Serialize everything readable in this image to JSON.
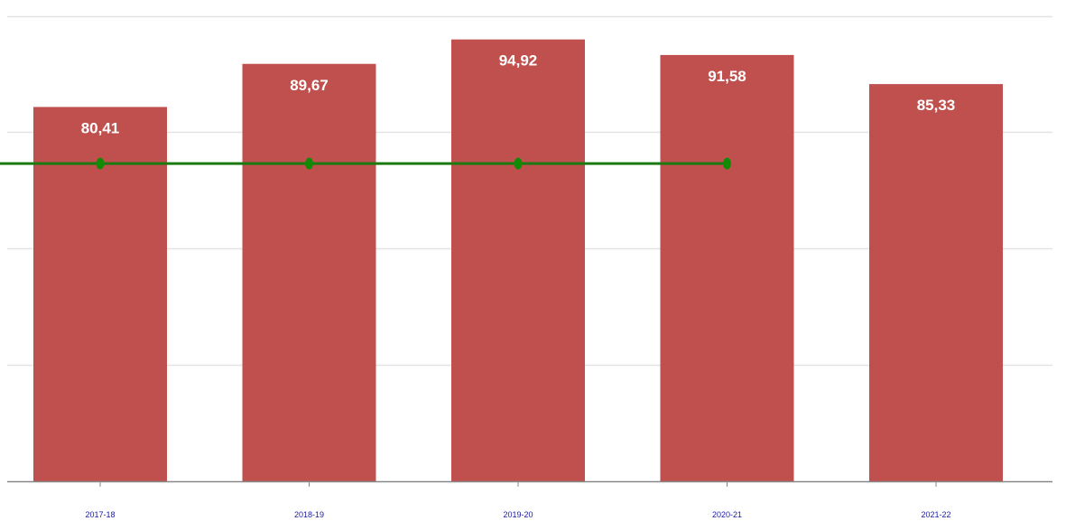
{
  "chart_data": {
    "type": "bar",
    "title": "",
    "xlabel": "",
    "ylabel": "",
    "categories": [
      "2017-18",
      "2018-19",
      "2019-20",
      "2020-21",
      "2021-22"
    ],
    "values": [
      80.41,
      89.67,
      94.92,
      91.58,
      85.33
    ],
    "value_labels": [
      "80,41",
      "89,67",
      "94,92",
      "91,58",
      "85,33"
    ],
    "reference_line": {
      "value": 70,
      "points_at": [
        "2017-18",
        "2018-19",
        "2019-20",
        "2020-21"
      ],
      "extends_to_left_edge": true
    },
    "ylim": [
      0,
      100
    ],
    "y_gridlines": [
      25,
      50,
      75,
      100
    ],
    "grid": true,
    "legend": "none",
    "colors": {
      "bar": "#c0504d",
      "bar_label": "#ffffff",
      "reference_line": "#1a7a10",
      "reference_point": "#138a06",
      "gridline": "#e3e3e3",
      "axis": "#888888",
      "tick_label": "#1a1aa6"
    }
  }
}
